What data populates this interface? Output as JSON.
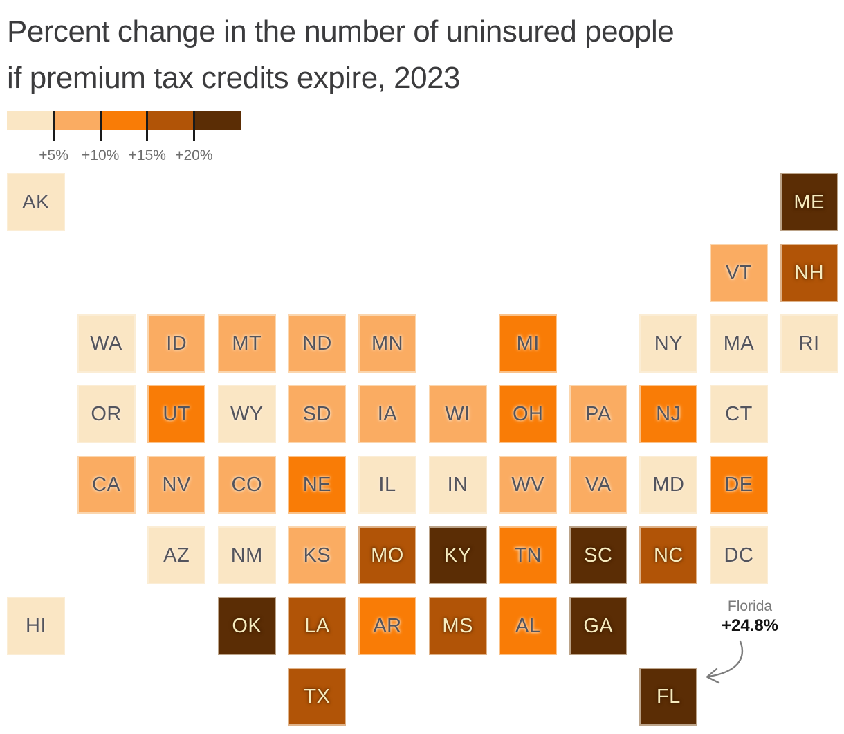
{
  "title": {
    "line1": "Percent change in the number of uninsured people",
    "line2": "if premium tax credits expire, 2023"
  },
  "annotation": {
    "state_name": "Florida",
    "value": "+24.8%"
  },
  "colors": {
    "title_text": "#3b3b3d",
    "legend_label": "#6e6e6e",
    "legend_tick": "#1a1a1a",
    "annotation_label": "#7b7b7b",
    "annotation_value": "#141414",
    "arrow": "#7d7d7d",
    "label_on_light": "#53545d",
    "label_on_dark": "#f6ebbe",
    "halo_on_light": "rgba(255,240,220,0.85)",
    "halo_on_dark": "rgba(45,20,0,0.55)"
  },
  "chart_data": {
    "type": "heatmap",
    "title": "Percent change in the number of uninsured people if premium tax credits expire, 2023",
    "legend_thresholds": [
      "+5%",
      "+10%",
      "+15%",
      "+20%"
    ],
    "palette": [
      "#FAE6C4",
      "#FAAC62",
      "#F97C06",
      "#B15407",
      "#5B2D05"
    ],
    "bucket_meaning": "1: under +5%, 2: +5 to +10%, 3: +10 to +15%, 4: +15 to +20%, 5: over +20%",
    "annotation": {
      "state": "Florida",
      "value_pct": 24.8
    },
    "states": [
      {
        "abbr": "AK",
        "col": 0,
        "row": 0,
        "bucket": 1
      },
      {
        "abbr": "ME",
        "col": 11,
        "row": 0,
        "bucket": 5
      },
      {
        "abbr": "VT",
        "col": 10,
        "row": 1,
        "bucket": 2
      },
      {
        "abbr": "NH",
        "col": 11,
        "row": 1,
        "bucket": 4
      },
      {
        "abbr": "WA",
        "col": 1,
        "row": 2,
        "bucket": 1
      },
      {
        "abbr": "ID",
        "col": 2,
        "row": 2,
        "bucket": 2
      },
      {
        "abbr": "MT",
        "col": 3,
        "row": 2,
        "bucket": 2
      },
      {
        "abbr": "ND",
        "col": 4,
        "row": 2,
        "bucket": 2
      },
      {
        "abbr": "MN",
        "col": 5,
        "row": 2,
        "bucket": 2
      },
      {
        "abbr": "MI",
        "col": 7,
        "row": 2,
        "bucket": 3
      },
      {
        "abbr": "NY",
        "col": 9,
        "row": 2,
        "bucket": 1
      },
      {
        "abbr": "MA",
        "col": 10,
        "row": 2,
        "bucket": 1
      },
      {
        "abbr": "RI",
        "col": 11,
        "row": 2,
        "bucket": 1
      },
      {
        "abbr": "OR",
        "col": 1,
        "row": 3,
        "bucket": 1
      },
      {
        "abbr": "UT",
        "col": 2,
        "row": 3,
        "bucket": 3
      },
      {
        "abbr": "WY",
        "col": 3,
        "row": 3,
        "bucket": 1
      },
      {
        "abbr": "SD",
        "col": 4,
        "row": 3,
        "bucket": 2
      },
      {
        "abbr": "IA",
        "col": 5,
        "row": 3,
        "bucket": 2
      },
      {
        "abbr": "WI",
        "col": 6,
        "row": 3,
        "bucket": 2
      },
      {
        "abbr": "OH",
        "col": 7,
        "row": 3,
        "bucket": 3
      },
      {
        "abbr": "PA",
        "col": 8,
        "row": 3,
        "bucket": 2
      },
      {
        "abbr": "NJ",
        "col": 9,
        "row": 3,
        "bucket": 3
      },
      {
        "abbr": "CT",
        "col": 10,
        "row": 3,
        "bucket": 1
      },
      {
        "abbr": "CA",
        "col": 1,
        "row": 4,
        "bucket": 2
      },
      {
        "abbr": "NV",
        "col": 2,
        "row": 4,
        "bucket": 2
      },
      {
        "abbr": "CO",
        "col": 3,
        "row": 4,
        "bucket": 2
      },
      {
        "abbr": "NE",
        "col": 4,
        "row": 4,
        "bucket": 3
      },
      {
        "abbr": "IL",
        "col": 5,
        "row": 4,
        "bucket": 1
      },
      {
        "abbr": "IN",
        "col": 6,
        "row": 4,
        "bucket": 1
      },
      {
        "abbr": "WV",
        "col": 7,
        "row": 4,
        "bucket": 2
      },
      {
        "abbr": "VA",
        "col": 8,
        "row": 4,
        "bucket": 2
      },
      {
        "abbr": "MD",
        "col": 9,
        "row": 4,
        "bucket": 1
      },
      {
        "abbr": "DE",
        "col": 10,
        "row": 4,
        "bucket": 3
      },
      {
        "abbr": "AZ",
        "col": 2,
        "row": 5,
        "bucket": 1
      },
      {
        "abbr": "NM",
        "col": 3,
        "row": 5,
        "bucket": 1
      },
      {
        "abbr": "KS",
        "col": 4,
        "row": 5,
        "bucket": 2
      },
      {
        "abbr": "MO",
        "col": 5,
        "row": 5,
        "bucket": 4
      },
      {
        "abbr": "KY",
        "col": 6,
        "row": 5,
        "bucket": 5
      },
      {
        "abbr": "TN",
        "col": 7,
        "row": 5,
        "bucket": 3
      },
      {
        "abbr": "SC",
        "col": 8,
        "row": 5,
        "bucket": 5
      },
      {
        "abbr": "NC",
        "col": 9,
        "row": 5,
        "bucket": 4
      },
      {
        "abbr": "DC",
        "col": 10,
        "row": 5,
        "bucket": 1
      },
      {
        "abbr": "HI",
        "col": 0,
        "row": 6,
        "bucket": 1
      },
      {
        "abbr": "OK",
        "col": 3,
        "row": 6,
        "bucket": 5
      },
      {
        "abbr": "LA",
        "col": 4,
        "row": 6,
        "bucket": 4
      },
      {
        "abbr": "AR",
        "col": 5,
        "row": 6,
        "bucket": 3
      },
      {
        "abbr": "MS",
        "col": 6,
        "row": 6,
        "bucket": 4
      },
      {
        "abbr": "AL",
        "col": 7,
        "row": 6,
        "bucket": 3
      },
      {
        "abbr": "GA",
        "col": 8,
        "row": 6,
        "bucket": 5
      },
      {
        "abbr": "TX",
        "col": 4,
        "row": 7,
        "bucket": 4
      },
      {
        "abbr": "FL",
        "col": 9,
        "row": 7,
        "bucket": 5
      }
    ]
  }
}
